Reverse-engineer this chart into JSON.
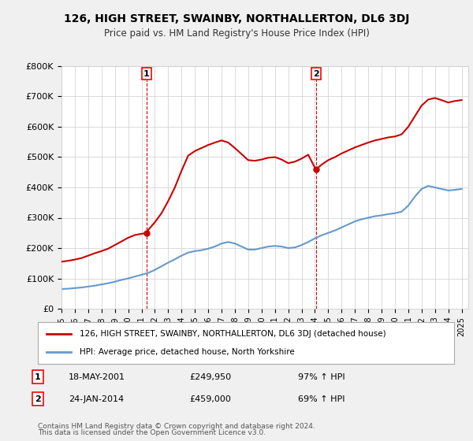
{
  "title": "126, HIGH STREET, SWAINBY, NORTHALLERTON, DL6 3DJ",
  "subtitle": "Price paid vs. HM Land Registry's House Price Index (HPI)",
  "legend_property": "126, HIGH STREET, SWAINBY, NORTHALLERTON, DL6 3DJ (detached house)",
  "legend_hpi": "HPI: Average price, detached house, North Yorkshire",
  "footnote1": "Contains HM Land Registry data © Crown copyright and database right 2024.",
  "footnote2": "This data is licensed under the Open Government Licence v3.0.",
  "property_color": "#cc0000",
  "hpi_color": "#6699cc",
  "background_color": "#f0f0f0",
  "plot_bg_color": "#ffffff",
  "sale1": {
    "label": "1",
    "date": "18-MAY-2001",
    "price": 249950,
    "pct": "97% ↑ HPI",
    "year": 2001.38
  },
  "sale2": {
    "label": "2",
    "date": "24-JAN-2014",
    "price": 459000,
    "pct": "69% ↑ HPI",
    "year": 2014.07
  },
  "ylim": [
    0,
    800000
  ],
  "yticks": [
    0,
    100000,
    200000,
    300000,
    400000,
    500000,
    600000,
    700000,
    800000
  ],
  "ytick_labels": [
    "£0",
    "£100K",
    "£200K",
    "£300K",
    "£400K",
    "£500K",
    "£600K",
    "£700K",
    "£800K"
  ],
  "hpi_data": {
    "years": [
      1995,
      1995.5,
      1996,
      1996.5,
      1997,
      1997.5,
      1998,
      1998.5,
      1999,
      1999.5,
      2000,
      2000.5,
      2001,
      2001.5,
      2002,
      2002.5,
      2003,
      2003.5,
      2004,
      2004.5,
      2005,
      2005.5,
      2006,
      2006.5,
      2007,
      2007.5,
      2008,
      2008.5,
      2009,
      2009.5,
      2010,
      2010.5,
      2011,
      2011.5,
      2012,
      2012.5,
      2013,
      2013.5,
      2014,
      2014.5,
      2015,
      2015.5,
      2016,
      2016.5,
      2017,
      2017.5,
      2018,
      2018.5,
      2019,
      2019.5,
      2020,
      2020.5,
      2021,
      2021.5,
      2022,
      2022.5,
      2023,
      2023.5,
      2024,
      2024.5,
      2025
    ],
    "values": [
      65000,
      66000,
      68000,
      70000,
      73000,
      76000,
      80000,
      84000,
      89000,
      95000,
      100000,
      106000,
      112000,
      118000,
      128000,
      140000,
      152000,
      163000,
      175000,
      185000,
      190000,
      193000,
      198000,
      205000,
      215000,
      220000,
      215000,
      205000,
      195000,
      195000,
      200000,
      205000,
      207000,
      205000,
      200000,
      202000,
      210000,
      220000,
      232000,
      242000,
      250000,
      258000,
      268000,
      278000,
      288000,
      295000,
      300000,
      305000,
      308000,
      312000,
      315000,
      320000,
      340000,
      370000,
      395000,
      405000,
      400000,
      395000,
      390000,
      392000,
      395000
    ]
  },
  "property_data": {
    "years": [
      1995,
      1995.5,
      1996,
      1996.5,
      1997,
      1997.5,
      1998,
      1998.5,
      1999,
      1999.5,
      2000,
      2000.5,
      2001.38,
      2001.5,
      2002,
      2002.5,
      2003,
      2003.5,
      2004,
      2004.5,
      2005,
      2005.5,
      2006,
      2006.5,
      2007,
      2007.5,
      2008,
      2008.5,
      2009,
      2009.5,
      2010,
      2010.5,
      2011,
      2011.5,
      2012,
      2012.5,
      2013,
      2013.5,
      2014.07,
      2014.5,
      2015,
      2015.5,
      2016,
      2016.5,
      2017,
      2017.5,
      2018,
      2018.5,
      2019,
      2019.5,
      2020,
      2020.5,
      2021,
      2021.5,
      2022,
      2022.5,
      2023,
      2023.5,
      2024,
      2024.5,
      2025
    ],
    "values": [
      155000,
      158000,
      162000,
      167000,
      175000,
      183000,
      190000,
      198000,
      210000,
      222000,
      234000,
      243000,
      249950,
      260000,
      285000,
      315000,
      355000,
      400000,
      455000,
      505000,
      520000,
      530000,
      540000,
      548000,
      555000,
      548000,
      530000,
      510000,
      490000,
      488000,
      492000,
      498000,
      500000,
      492000,
      480000,
      485000,
      495000,
      508000,
      459000,
      475000,
      490000,
      500000,
      512000,
      522000,
      532000,
      540000,
      548000,
      555000,
      560000,
      565000,
      568000,
      575000,
      600000,
      635000,
      670000,
      690000,
      695000,
      688000,
      680000,
      685000,
      688000
    ]
  }
}
